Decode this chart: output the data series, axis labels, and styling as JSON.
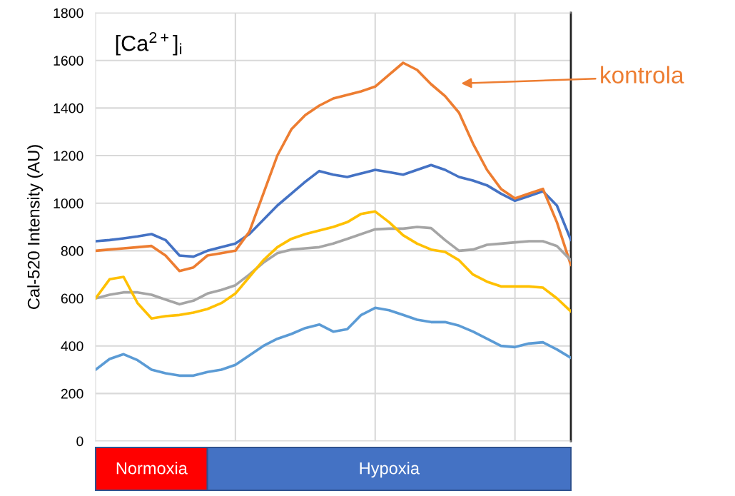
{
  "chart_data": {
    "type": "line",
    "title": "[Ca$^{2+}$]$_{i}$",
    "ylabel": "Cal-520 Intensity (AU)",
    "categories": [
      null,
      null,
      null,
      null,
      null,
      null,
      null,
      null,
      null,
      null,
      null,
      null,
      null,
      null,
      null,
      null,
      null,
      null,
      null,
      null,
      null,
      null,
      null,
      null,
      null,
      null,
      null,
      null,
      null,
      null,
      null,
      null,
      null,
      null,
      null
    ],
    "series": [
      {
        "color": "#4472c4",
        "values": [
          840,
          845,
          852,
          860,
          870,
          845,
          780,
          775,
          800,
          815,
          830,
          870,
          930,
          990,
          1040,
          1090,
          1135,
          1120,
          1110,
          1125,
          1140,
          1130,
          1120,
          1140,
          1160,
          1140,
          1110,
          1095,
          1075,
          1040,
          1010,
          1030,
          1050,
          990,
          845
        ]
      },
      {
        "color": "#ed7d31",
        "values": [
          800,
          805,
          810,
          815,
          820,
          780,
          715,
          730,
          780,
          790,
          800,
          880,
          1040,
          1200,
          1310,
          1370,
          1410,
          1440,
          1455,
          1470,
          1490,
          1540,
          1590,
          1560,
          1500,
          1450,
          1380,
          1250,
          1140,
          1060,
          1020,
          1040,
          1060,
          920,
          740
        ]
      },
      {
        "color": "#a5a5a5",
        "values": [
          600,
          615,
          625,
          625,
          615,
          595,
          575,
          590,
          620,
          635,
          655,
          700,
          750,
          790,
          805,
          810,
          815,
          830,
          850,
          870,
          890,
          893,
          893,
          900,
          895,
          845,
          800,
          805,
          825,
          830,
          835,
          840,
          840,
          820,
          760
        ]
      },
      {
        "color": "#ffc000",
        "values": [
          600,
          680,
          690,
          580,
          515,
          525,
          530,
          540,
          555,
          580,
          620,
          690,
          760,
          815,
          850,
          870,
          885,
          900,
          920,
          955,
          965,
          920,
          865,
          830,
          805,
          795,
          760,
          700,
          670,
          650,
          650,
          650,
          645,
          600,
          545
        ]
      },
      {
        "color": "#5b9bd5",
        "values": [
          300,
          345,
          365,
          340,
          300,
          285,
          275,
          275,
          290,
          300,
          320,
          360,
          400,
          430,
          450,
          475,
          490,
          460,
          470,
          530,
          560,
          550,
          530,
          510,
          500,
          500,
          485,
          460,
          430,
          400,
          395,
          410,
          415,
          385,
          350
        ]
      }
    ],
    "ylim": [
      0,
      1800
    ],
    "yticks": [
      0,
      200,
      400,
      600,
      800,
      1000,
      1200,
      1400,
      1600,
      1800
    ],
    "grid": true,
    "tick_labels": "y",
    "line_style": "solid",
    "marker": "none",
    "annotations": [
      "Normoxia",
      "Hypoxia",
      "kontrola"
    ]
  }
}
